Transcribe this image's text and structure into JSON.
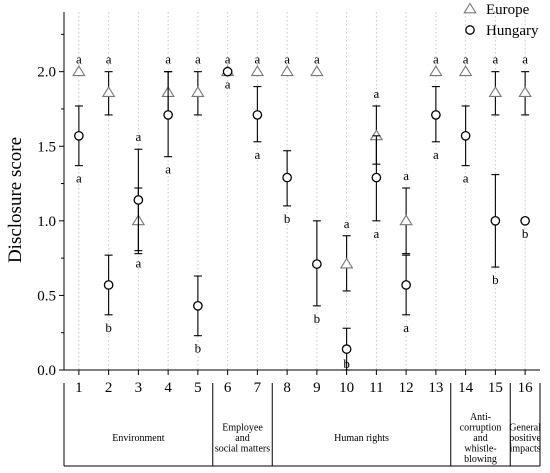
{
  "chart_data": {
    "type": "scatter",
    "title": "",
    "ylabel": "Disclosure score",
    "xlabel": "",
    "ylim": [
      0,
      2.4
    ],
    "yticks": [
      0.0,
      0.5,
      1.0,
      1.5,
      2.0
    ],
    "ytick_labels": [
      "0.0",
      "0.5",
      "1.0",
      "1.5",
      "2.0"
    ],
    "x": [
      1,
      2,
      3,
      4,
      5,
      6,
      7,
      8,
      9,
      10,
      11,
      12,
      13,
      14,
      15,
      16
    ],
    "x_labels": [
      "1",
      "2",
      "3",
      "4",
      "5",
      "6",
      "7",
      "8",
      "9",
      "10",
      "11",
      "12",
      "13",
      "14",
      "15",
      "16"
    ],
    "grid": "vertical dotted lines at each category",
    "legend": {
      "placement": "top-right"
    },
    "series": [
      {
        "name": "Europe",
        "marker": "triangle",
        "values": [
          2.0,
          1.86,
          1.0,
          1.86,
          1.86,
          2.0,
          2.0,
          2.0,
          2.0,
          0.71,
          1.57,
          1.0,
          2.0,
          2.0,
          1.86,
          1.86
        ],
        "err_low": [
          null,
          1.71,
          0.8,
          1.71,
          1.71,
          null,
          null,
          null,
          null,
          0.53,
          1.38,
          0.78,
          null,
          null,
          1.71,
          1.71
        ],
        "err_high": [
          null,
          2.0,
          1.22,
          2.0,
          2.0,
          null,
          null,
          null,
          null,
          0.9,
          1.77,
          1.22,
          null,
          null,
          2.0,
          2.0
        ],
        "letters": [
          "a",
          "a",
          "a",
          "a",
          "a",
          "a",
          "a",
          "a",
          "a",
          "a",
          "a",
          "a",
          "a",
          "a",
          "a",
          "a"
        ]
      },
      {
        "name": "Hungary",
        "marker": "circle",
        "values": [
          1.57,
          0.57,
          1.14,
          1.71,
          0.43,
          2.0,
          1.71,
          1.29,
          0.71,
          0.14,
          1.29,
          0.57,
          1.71,
          1.57,
          1.0,
          1.0
        ],
        "err_low": [
          1.37,
          0.37,
          0.78,
          1.43,
          0.23,
          null,
          1.53,
          1.1,
          0.43,
          0.0,
          1.0,
          0.37,
          1.53,
          1.37,
          0.69,
          null
        ],
        "err_high": [
          1.77,
          0.77,
          1.48,
          2.0,
          0.63,
          null,
          1.9,
          1.47,
          1.0,
          0.28,
          1.57,
          0.77,
          1.9,
          1.77,
          1.31,
          null
        ],
        "letters": [
          "a",
          "b",
          "a",
          "a",
          "b",
          "a",
          "a",
          "b",
          "b",
          "b",
          "a",
          "a",
          "a",
          "a",
          "b",
          "b"
        ]
      }
    ],
    "groups": [
      {
        "label_lines": [
          "Environment"
        ],
        "from": 1,
        "to": 5
      },
      {
        "label_lines": [
          "Employee",
          "and",
          "social matters"
        ],
        "from": 6,
        "to": 7
      },
      {
        "label_lines": [
          "Human rights"
        ],
        "from": 8,
        "to": 13
      },
      {
        "label_lines": [
          "Anti-",
          "corruption",
          "and",
          "whistle-",
          "blowing"
        ],
        "from": 14,
        "to": 15
      },
      {
        "label_lines": [
          "General",
          "positive",
          "impacts"
        ],
        "from": 16,
        "to": 16
      }
    ]
  }
}
